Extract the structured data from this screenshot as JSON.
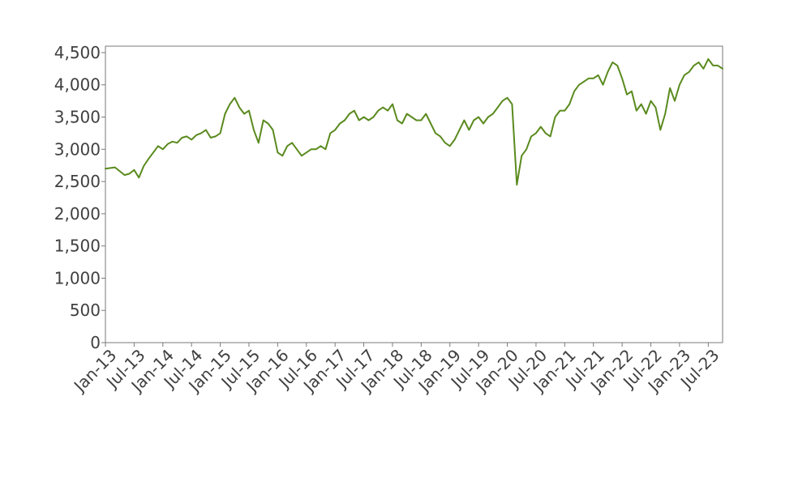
{
  "chart_data": {
    "type": "line",
    "title": "",
    "xlabel": "",
    "ylabel": "",
    "ylim": [
      0,
      4600
    ],
    "xlim": [
      "2013-01",
      "2023-10"
    ],
    "grid": false,
    "legend": "none",
    "y_ticks": [
      {
        "value": 0,
        "label": "0"
      },
      {
        "value": 500,
        "label": "500"
      },
      {
        "value": 1000,
        "label": "1,000"
      },
      {
        "value": 1500,
        "label": "1,500"
      },
      {
        "value": 2000,
        "label": "2,000"
      },
      {
        "value": 2500,
        "label": "2,500"
      },
      {
        "value": 3000,
        "label": "3,000"
      },
      {
        "value": 3500,
        "label": "3,500"
      },
      {
        "value": 4000,
        "label": "4,000"
      },
      {
        "value": 4500,
        "label": "4,500"
      }
    ],
    "x_ticks": [
      {
        "value": "2013-01",
        "label": "Jan-13"
      },
      {
        "value": "2013-07",
        "label": "Jul-13"
      },
      {
        "value": "2014-01",
        "label": "Jan-14"
      },
      {
        "value": "2014-07",
        "label": "Jul-14"
      },
      {
        "value": "2015-01",
        "label": "Jan-15"
      },
      {
        "value": "2015-07",
        "label": "Jul-15"
      },
      {
        "value": "2016-01",
        "label": "Jan-16"
      },
      {
        "value": "2016-07",
        "label": "Jul-16"
      },
      {
        "value": "2017-01",
        "label": "Jan-17"
      },
      {
        "value": "2017-07",
        "label": "Jul-17"
      },
      {
        "value": "2018-01",
        "label": "Jan-18"
      },
      {
        "value": "2018-07",
        "label": "Jul-18"
      },
      {
        "value": "2019-01",
        "label": "Jan-19"
      },
      {
        "value": "2019-07",
        "label": "Jul-19"
      },
      {
        "value": "2020-01",
        "label": "Jan-20"
      },
      {
        "value": "2020-07",
        "label": "Jul-20"
      },
      {
        "value": "2021-01",
        "label": "Jan-21"
      },
      {
        "value": "2021-07",
        "label": "Jul-21"
      },
      {
        "value": "2022-01",
        "label": "Jan-22"
      },
      {
        "value": "2022-07",
        "label": "Jul-22"
      },
      {
        "value": "2023-01",
        "label": "Jan-23"
      },
      {
        "value": "2023-07",
        "label": "Jul-23"
      }
    ],
    "series": [
      {
        "color": "#5a8a1e",
        "x": [
          "2013-01",
          "2013-03",
          "2013-05",
          "2013-06",
          "2013-07",
          "2013-08",
          "2013-09",
          "2013-10",
          "2013-11",
          "2013-12",
          "2014-01",
          "2014-02",
          "2014-03",
          "2014-04",
          "2014-05",
          "2014-06",
          "2014-07",
          "2014-08",
          "2014-09",
          "2014-10",
          "2014-11",
          "2014-12",
          "2015-01",
          "2015-02",
          "2015-03",
          "2015-04",
          "2015-05",
          "2015-06",
          "2015-07",
          "2015-08",
          "2015-09",
          "2015-10",
          "2015-11",
          "2015-12",
          "2016-01",
          "2016-02",
          "2016-03",
          "2016-04",
          "2016-05",
          "2016-06",
          "2016-07",
          "2016-08",
          "2016-09",
          "2016-10",
          "2016-11",
          "2016-12",
          "2017-01",
          "2017-02",
          "2017-03",
          "2017-04",
          "2017-05",
          "2017-06",
          "2017-07",
          "2017-08",
          "2017-09",
          "2017-10",
          "2017-11",
          "2017-12",
          "2018-01",
          "2018-02",
          "2018-03",
          "2018-04",
          "2018-05",
          "2018-06",
          "2018-07",
          "2018-08",
          "2018-09",
          "2018-10",
          "2018-11",
          "2018-12",
          "2019-01",
          "2019-02",
          "2019-03",
          "2019-04",
          "2019-05",
          "2019-06",
          "2019-07",
          "2019-08",
          "2019-09",
          "2019-10",
          "2019-11",
          "2019-12",
          "2020-01",
          "2020-02",
          "2020-03",
          "2020-04",
          "2020-05",
          "2020-06",
          "2020-07",
          "2020-08",
          "2020-09",
          "2020-10",
          "2020-11",
          "2020-12",
          "2021-01",
          "2021-02",
          "2021-03",
          "2021-04",
          "2021-05",
          "2021-06",
          "2021-07",
          "2021-08",
          "2021-09",
          "2021-10",
          "2021-11",
          "2021-12",
          "2022-01",
          "2022-02",
          "2022-03",
          "2022-04",
          "2022-05",
          "2022-06",
          "2022-07",
          "2022-08",
          "2022-09",
          "2022-10",
          "2022-11",
          "2022-12",
          "2023-01",
          "2023-02",
          "2023-03",
          "2023-04",
          "2023-05",
          "2023-06",
          "2023-07",
          "2023-08",
          "2023-09",
          "2023-10"
        ],
        "values": [
          2700,
          2720,
          2600,
          2620,
          2680,
          2560,
          2740,
          2850,
          2950,
          3050,
          3000,
          3080,
          3120,
          3100,
          3180,
          3200,
          3150,
          3220,
          3250,
          3300,
          3180,
          3200,
          3250,
          3550,
          3700,
          3800,
          3650,
          3550,
          3600,
          3300,
          3100,
          3450,
          3400,
          3300,
          2950,
          2900,
          3050,
          3100,
          3000,
          2900,
          2950,
          3000,
          3000,
          3050,
          3000,
          3250,
          3300,
          3400,
          3450,
          3550,
          3600,
          3450,
          3500,
          3450,
          3500,
          3600,
          3650,
          3600,
          3700,
          3450,
          3400,
          3550,
          3500,
          3450,
          3450,
          3550,
          3400,
          3250,
          3200,
          3100,
          3050,
          3150,
          3300,
          3450,
          3300,
          3450,
          3500,
          3400,
          3500,
          3550,
          3650,
          3750,
          3800,
          3700,
          2450,
          2900,
          3000,
          3200,
          3250,
          3350,
          3250,
          3200,
          3500,
          3600,
          3600,
          3700,
          3900,
          4000,
          4050,
          4100,
          4100,
          4150,
          4000,
          4200,
          4350,
          4300,
          4100,
          3850,
          3900,
          3600,
          3700,
          3550,
          3750,
          3650,
          3300,
          3550,
          3950,
          3750,
          4000,
          4150,
          4200,
          4300,
          4350,
          4250,
          4400,
          4300,
          4300,
          4250
        ]
      }
    ]
  }
}
